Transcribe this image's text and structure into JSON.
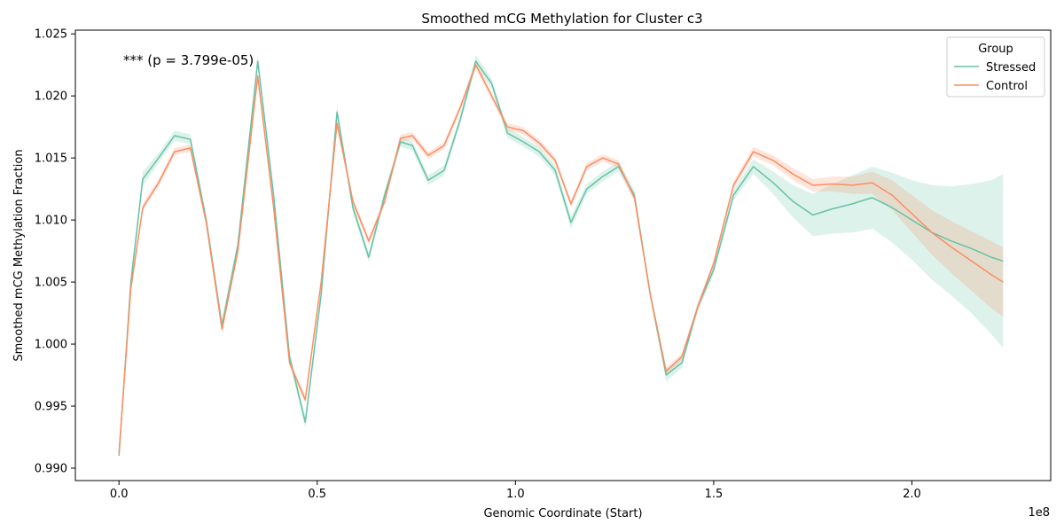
{
  "chart_data": {
    "type": "line",
    "title": "Smoothed mCG Methylation for Cluster c3",
    "xlabel": "Genomic Coordinate (Start)",
    "ylabel": "Smoothed mCG Methylation Fraction",
    "x_offset_label": "1e8",
    "annotation": "*** (p = 3.799e-05)",
    "xlim": [
      -11000000,
      235000000
    ],
    "ylim": [
      0.989,
      1.0253
    ],
    "x_ticks": [
      0,
      50000000,
      100000000,
      150000000,
      200000000
    ],
    "x_tick_labels": [
      "0.0",
      "0.5",
      "1.0",
      "1.5",
      "2.0"
    ],
    "y_ticks": [
      0.99,
      0.995,
      1.0,
      1.005,
      1.01,
      1.015,
      1.02,
      1.025
    ],
    "y_tick_labels": [
      "0.990",
      "0.995",
      "1.000",
      "1.005",
      "1.010",
      "1.015",
      "1.020",
      "1.025"
    ],
    "grid": false,
    "legend": {
      "title": "Group",
      "placement": "top-right",
      "entries": [
        "Stressed",
        "Control"
      ]
    },
    "series": [
      {
        "name": "Stressed",
        "color": "#66c2a5",
        "x": [
          0,
          3000000,
          6000000,
          10000000,
          14000000,
          18000000,
          22000000,
          26000000,
          30000000,
          35000000,
          39000000,
          43000000,
          47000000,
          51000000,
          55000000,
          59000000,
          63000000,
          67000000,
          71000000,
          74000000,
          78000000,
          82000000,
          86000000,
          90000000,
          94000000,
          98000000,
          102000000,
          106000000,
          110000000,
          114000000,
          118000000,
          122000000,
          126000000,
          130000000,
          134000000,
          138000000,
          142000000,
          146000000,
          150000000,
          155000000,
          160000000,
          165000000,
          170000000,
          175000000,
          180000000,
          185000000,
          190000000,
          195000000,
          200000000,
          205000000,
          210000000,
          215000000,
          220000000,
          223000000
        ],
        "y": [
          0.991,
          1.005,
          1.0133,
          1.015,
          1.0168,
          1.0165,
          1.01,
          1.0015,
          1.008,
          1.0228,
          1.012,
          0.999,
          0.9937,
          1.004,
          1.0187,
          1.011,
          1.007,
          1.012,
          1.0163,
          1.016,
          1.0132,
          1.014,
          1.018,
          1.0228,
          1.021,
          1.017,
          1.0163,
          1.0155,
          1.014,
          1.0098,
          1.0125,
          1.0135,
          1.0143,
          1.012,
          1.004,
          0.9975,
          0.9985,
          1.003,
          1.006,
          1.012,
          1.0143,
          1.013,
          1.0115,
          1.0104,
          1.0109,
          1.0113,
          1.0118,
          1.011,
          1.01,
          1.009,
          1.0083,
          1.0077,
          1.007,
          1.0067
        ],
        "ci_halfwidth": [
          0.0002,
          0.0005,
          0.0006,
          0.0004,
          0.0004,
          0.0004,
          0.0004,
          0.0005,
          0.0004,
          0.0005,
          0.0004,
          0.0004,
          0.0005,
          0.0004,
          0.0005,
          0.0004,
          0.0004,
          0.0004,
          0.0004,
          0.0004,
          0.0004,
          0.0004,
          0.0004,
          0.0005,
          0.0004,
          0.0004,
          0.0004,
          0.0004,
          0.0004,
          0.0005,
          0.0004,
          0.0004,
          0.0004,
          0.0004,
          0.0004,
          0.0005,
          0.0004,
          0.0004,
          0.0004,
          0.0004,
          0.0006,
          0.0009,
          0.0013,
          0.0017,
          0.002,
          0.0023,
          0.0025,
          0.0028,
          0.0032,
          0.0038,
          0.0044,
          0.0052,
          0.0062,
          0.007
        ]
      },
      {
        "name": "Control",
        "color": "#fc8d62",
        "x": [
          0,
          3000000,
          6000000,
          10000000,
          14000000,
          18000000,
          22000000,
          26000000,
          30000000,
          35000000,
          39000000,
          43000000,
          47000000,
          51000000,
          55000000,
          59000000,
          63000000,
          67000000,
          71000000,
          74000000,
          78000000,
          82000000,
          86000000,
          90000000,
          94000000,
          98000000,
          102000000,
          106000000,
          110000000,
          114000000,
          118000000,
          122000000,
          126000000,
          130000000,
          134000000,
          138000000,
          142000000,
          146000000,
          150000000,
          155000000,
          160000000,
          165000000,
          170000000,
          175000000,
          180000000,
          185000000,
          190000000,
          195000000,
          200000000,
          205000000,
          210000000,
          215000000,
          220000000,
          223000000
        ],
        "y": [
          0.9912,
          1.0045,
          1.011,
          1.013,
          1.0155,
          1.0158,
          1.0098,
          1.0012,
          1.0075,
          1.0216,
          1.011,
          0.9985,
          0.9955,
          1.005,
          1.0178,
          1.0115,
          1.0083,
          1.0115,
          1.0166,
          1.0168,
          1.0152,
          1.016,
          1.019,
          1.0225,
          1.02,
          1.0175,
          1.0172,
          1.0162,
          1.0148,
          1.0113,
          1.0143,
          1.015,
          1.0145,
          1.0118,
          1.004,
          0.9978,
          0.999,
          1.003,
          1.0065,
          1.0128,
          1.0155,
          1.0148,
          1.0137,
          1.0128,
          1.0129,
          1.0128,
          1.013,
          1.012,
          1.0105,
          1.009,
          1.0078,
          1.0067,
          1.0056,
          1.005
        ],
        "ci_halfwidth": [
          0.0002,
          0.0003,
          0.0003,
          0.0003,
          0.0003,
          0.0003,
          0.0003,
          0.0003,
          0.0003,
          0.0003,
          0.0003,
          0.0003,
          0.0003,
          0.0003,
          0.0003,
          0.0003,
          0.0003,
          0.0003,
          0.0003,
          0.0003,
          0.0003,
          0.0003,
          0.0003,
          0.0003,
          0.0003,
          0.0003,
          0.0003,
          0.0003,
          0.0003,
          0.0003,
          0.0003,
          0.0003,
          0.0003,
          0.0003,
          0.0003,
          0.0003,
          0.0003,
          0.0003,
          0.0003,
          0.0003,
          0.0004,
          0.0004,
          0.0005,
          0.0005,
          0.0006,
          0.0007,
          0.0009,
          0.0012,
          0.0015,
          0.0018,
          0.0021,
          0.0024,
          0.0027,
          0.0028
        ]
      }
    ]
  }
}
